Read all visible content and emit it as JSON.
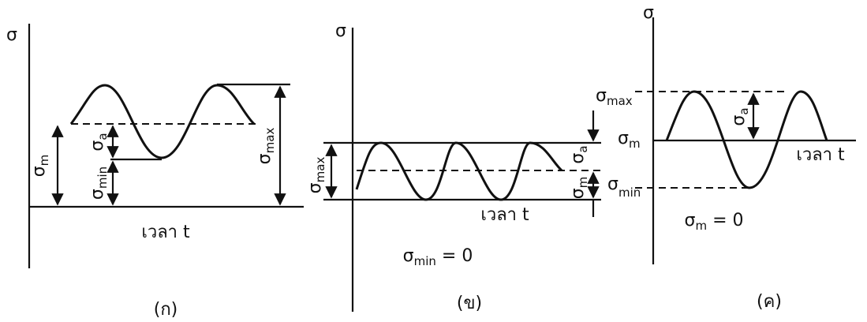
{
  "panels": [
    {
      "axis": "σ",
      "time": "เวลา t",
      "label": "(ก)",
      "mean": {
        "base": "σ",
        "sub": "m"
      },
      "amp": {
        "base": "σ",
        "sub": "a"
      },
      "min": {
        "base": "σ",
        "sub": "min"
      },
      "max": {
        "base": "σ",
        "sub": "max"
      }
    },
    {
      "axis": "σ",
      "time": "เวลา t",
      "label": "(ข)",
      "mean": {
        "base": "σ",
        "sub": "m"
      },
      "amp": {
        "base": "σ",
        "sub": "a"
      },
      "max": {
        "base": "σ",
        "sub": "max"
      },
      "caption": {
        "base": "σ",
        "sub": "min",
        "rest": " = 0"
      }
    },
    {
      "axis": "σ",
      "time": "เวลา t",
      "label": "(ค)",
      "mean": {
        "base": "σ",
        "sub": "m"
      },
      "amp": {
        "base": "σ",
        "sub": "a"
      },
      "min": {
        "base": "σ",
        "sub": "min"
      },
      "max": {
        "base": "σ",
        "sub": "max"
      },
      "caption": {
        "base": "σ",
        "sub": "m",
        "rest": " = 0"
      }
    }
  ]
}
